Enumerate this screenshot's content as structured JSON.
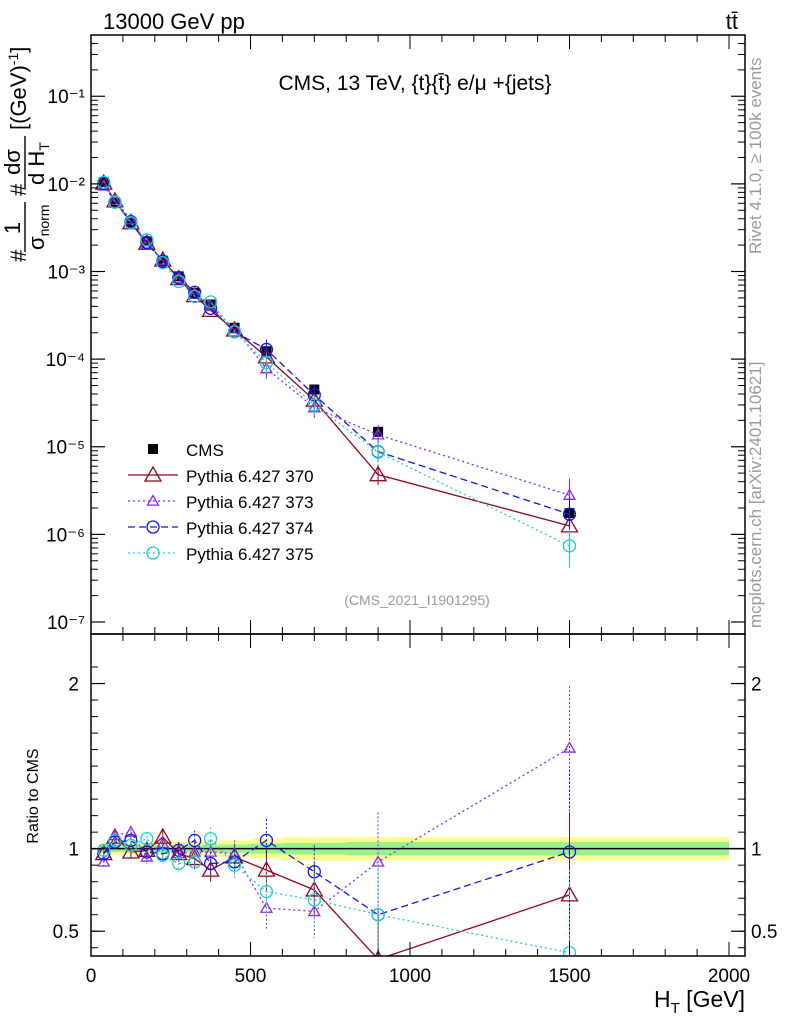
{
  "header": {
    "left": "13000 GeV pp",
    "right": "tt̄"
  },
  "side_labels": {
    "rivet": "Rivet 4.1.0, ≥ 100k events",
    "mcplots": "mcplots.cern.ch [arXiv:2401.10621]"
  },
  "colors": {
    "data": "#000000",
    "p370": "#8b0a1e",
    "p373": "#8a2be2",
    "p374": "#1414e6",
    "p375": "#1ccfcf",
    "band_inner": "#93f58c",
    "band_outer": "#fbfb8f"
  },
  "chart_data": [
    {
      "type": "scatter",
      "title": "CMS, 13 TeV, {t}{t̄} e/μ +{jets}",
      "watermark": "(CMS_2021_I1901295)",
      "xlabel": "H_T [GeV]",
      "ylabel": "#1/σ_norm #dσ/dH_T [(GeV)^-1]",
      "yscale": "log",
      "xlim": [
        0,
        2000
      ],
      "ylim": [
        1e-07,
        0.5
      ],
      "yticks": [
        {
          "value": 1e-07,
          "label": "10⁻⁷"
        },
        {
          "value": 1e-06,
          "label": "10⁻⁶"
        },
        {
          "value": 1e-05,
          "label": "10⁻⁵"
        },
        {
          "value": 0.0001,
          "label": "10⁻⁴"
        },
        {
          "value": 0.001,
          "label": "10⁻³"
        },
        {
          "value": 0.01,
          "label": "10⁻²"
        },
        {
          "value": 0.1,
          "label": "10⁻¹"
        }
      ],
      "x": [
        40,
        75,
        125,
        175,
        225,
        275,
        325,
        375,
        450,
        550,
        700,
        900,
        1500
      ],
      "series": [
        {
          "name": "CMS",
          "style": "data",
          "values": [
            0.0105,
            0.0061,
            0.0036,
            0.0022,
            0.00133,
            0.00088,
            0.00057,
            0.00042,
            0.000228,
            0.000123,
            4.5e-05,
            1.48e-05,
            1.75e-06
          ]
        },
        {
          "name": "Pythia 6.427 370",
          "style": "p370",
          "values": [
            0.0102,
            0.0064,
            0.0036,
            0.0021,
            0.00135,
            0.00083,
            0.00053,
            0.00036,
            0.000215,
            0.000106,
            3.4e-05,
            4.8e-06,
            1.25e-06
          ]
        },
        {
          "name": "Pythia 6.427 373",
          "style": "p373",
          "values": [
            0.0095,
            0.0065,
            0.0039,
            0.00205,
            0.00135,
            0.00083,
            0.00055,
            0.0004,
            0.000222,
            7.8e-05,
            2.8e-05,
            1.37e-05,
            2.8e-06
          ]
        },
        {
          "name": "Pythia 6.427 374",
          "style": "p374",
          "values": [
            0.0101,
            0.0062,
            0.0037,
            0.00215,
            0.0013,
            0.00085,
            0.00058,
            0.00038,
            0.000205,
            0.000129,
            3.9e-05,
            8.8e-06,
            1.7e-06
          ]
        },
        {
          "name": "Pythia 6.427 375",
          "style": "p375",
          "values": [
            0.0104,
            0.0062,
            0.0036,
            0.0023,
            0.00126,
            0.00077,
            0.00052,
            0.00045,
            0.000205,
            9.1e-05,
            3e-05,
            8.7e-06,
            7.4e-07
          ]
        }
      ]
    },
    {
      "type": "scatter",
      "title": "",
      "xlabel": "H_T [GeV]",
      "ylabel": "Ratio to CMS",
      "xlim": [
        0,
        2000
      ],
      "ylim": [
        0.35,
        2.3
      ],
      "xticks": [
        0,
        500,
        1000,
        1500,
        2000
      ],
      "yticks": [
        0.5,
        1,
        2
      ],
      "band_edges": [
        25,
        50,
        100,
        150,
        200,
        250,
        300,
        350,
        400,
        500,
        600,
        800,
        1000,
        2000
      ],
      "band_inner": [
        0.02,
        0.02,
        0.02,
        0.02,
        0.02,
        0.02,
        0.02,
        0.02,
        0.025,
        0.03,
        0.035,
        0.04,
        0.04
      ],
      "band_outer": [
        0.035,
        0.035,
        0.035,
        0.035,
        0.04,
        0.04,
        0.04,
        0.04,
        0.05,
        0.06,
        0.07,
        0.07,
        0.07
      ],
      "x": [
        40,
        75,
        125,
        175,
        225,
        275,
        325,
        375,
        450,
        550,
        700,
        900,
        1500
      ],
      "series": [
        {
          "name": "Pythia 6.427 370",
          "style": "p370",
          "values": [
            0.97,
            1.07,
            0.98,
            0.99,
            1.07,
            0.97,
            0.94,
            0.87,
            0.95,
            0.87,
            0.75,
            0.33,
            0.72
          ]
        },
        {
          "name": "Pythia 6.427 373",
          "style": "p373",
          "values": [
            0.92,
            1.08,
            1.1,
            0.95,
            1.03,
            0.97,
            0.98,
            0.98,
            0.97,
            0.64,
            0.62,
            0.92,
            1.61
          ]
        },
        {
          "name": "Pythia 6.427 374",
          "style": "p374",
          "values": [
            0.97,
            1.04,
            1.05,
            0.98,
            0.97,
            0.99,
            1.05,
            0.91,
            0.92,
            1.05,
            0.86,
            0.6,
            0.98
          ]
        },
        {
          "name": "Pythia 6.427 375",
          "style": "p375",
          "values": [
            0.99,
            1.05,
            1.02,
            1.06,
            0.96,
            0.91,
            0.92,
            1.06,
            0.9,
            0.74,
            0.69,
            0.6,
            0.37
          ]
        }
      ]
    }
  ]
}
